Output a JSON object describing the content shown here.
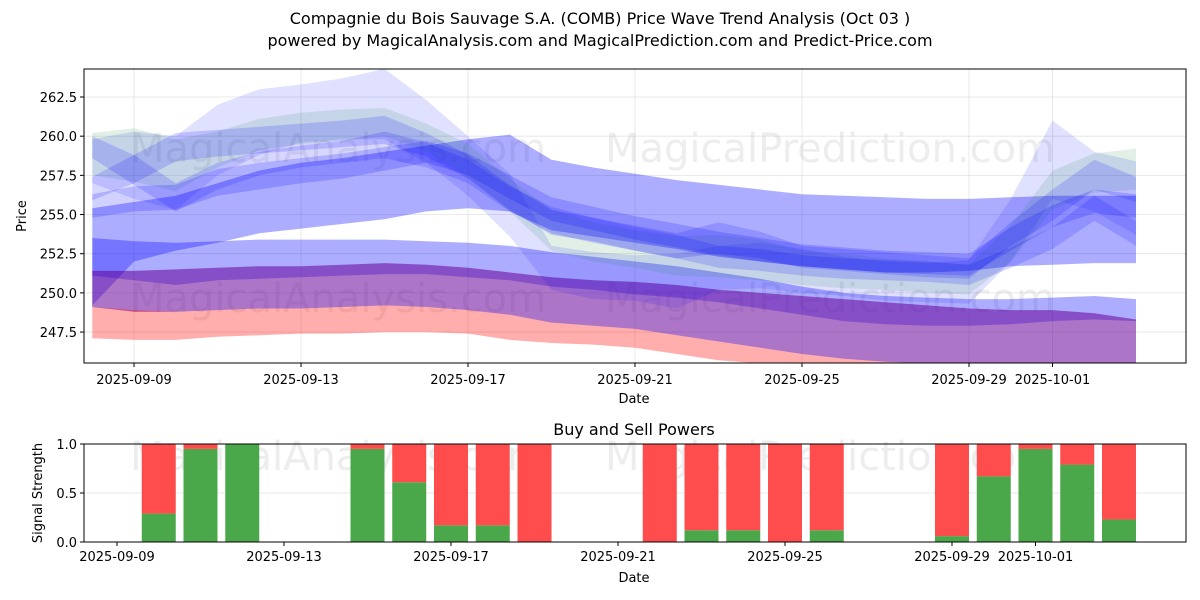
{
  "header": {
    "title": "Compagnie du Bois Sauvage S.A. (COMB) Price Wave Trend Analysis (Oct 03 )",
    "subtitle": "powered by MagicalAnalysis.com and MagicalPrediction.com and Predict-Price.com"
  },
  "watermarks": [
    "MagicalAnalysis.com",
    "MagicalPrediction.com"
  ],
  "colors": {
    "blue_band": "#0000ff",
    "green_band": "#2e8b57",
    "red_band": "#ff0000",
    "buy": "#4aa74a",
    "sell": "#ff4c4c"
  },
  "chart_data": [
    {
      "type": "area",
      "title": "",
      "xlabel": "Date",
      "ylabel": "Price",
      "x_ticks": [
        "2025-09-09",
        "2025-09-13",
        "2025-09-17",
        "2025-09-21",
        "2025-09-25",
        "2025-09-29",
        "2025-10-01"
      ],
      "y_ticks": [
        "247.5",
        "250.0",
        "252.5",
        "255.0",
        "257.5",
        "260.0",
        "262.5"
      ],
      "xlim": [
        "2025-09-07.8",
        "2025-10-04.2"
      ],
      "ylim": [
        245.5,
        264.3
      ],
      "grid": true,
      "x": [
        "2025-09-08",
        "2025-09-09",
        "2025-09-10",
        "2025-09-11",
        "2025-09-12",
        "2025-09-13",
        "2025-09-14",
        "2025-09-15",
        "2025-09-16",
        "2025-09-17",
        "2025-09-18",
        "2025-09-19",
        "2025-09-20",
        "2025-09-21",
        "2025-09-22",
        "2025-09-23",
        "2025-09-24",
        "2025-09-25",
        "2025-09-26",
        "2025-09-27",
        "2025-09-28",
        "2025-09-29",
        "2025-09-30",
        "2025-10-01",
        "2025-10-02",
        "2025-10-03"
      ],
      "series": [
        {
          "name": "wide-blue-upper",
          "color": "blue",
          "opacity": 0.32,
          "upper": [
            255.4,
            255.8,
            256.2,
            257.0,
            257.8,
            258.3,
            258.6,
            259.0,
            259.4,
            259.8,
            260.1,
            258.5,
            258.0,
            257.6,
            257.2,
            256.9,
            256.6,
            256.3,
            256.2,
            256.1,
            256.0,
            256.0,
            256.1,
            256.2,
            256.2,
            256.2
          ],
          "lower": [
            249.2,
            252.0,
            252.7,
            253.2,
            253.8,
            254.1,
            254.4,
            254.7,
            255.2,
            255.4,
            255.2,
            254.0,
            253.6,
            253.2,
            252.8,
            252.3,
            252.0,
            251.7,
            251.5,
            251.3,
            251.3,
            251.4,
            251.7,
            251.8,
            251.9,
            251.9
          ]
        },
        {
          "name": "blue-middle-band",
          "color": "blue",
          "opacity": 0.32,
          "upper": [
            253.5,
            253.3,
            253.2,
            253.3,
            253.4,
            253.4,
            253.4,
            253.4,
            253.3,
            253.2,
            253.0,
            252.6,
            252.3,
            252.0,
            251.7,
            251.3,
            250.9,
            250.4,
            250.0,
            249.8,
            249.7,
            249.6,
            249.6,
            249.7,
            249.8,
            249.6
          ],
          "lower": [
            251.1,
            250.8,
            250.5,
            250.8,
            250.9,
            251.0,
            251.1,
            251.2,
            251.2,
            251.0,
            250.8,
            250.4,
            250.2,
            249.9,
            249.7,
            249.4,
            249.0,
            248.6,
            248.2,
            248.0,
            247.9,
            247.9,
            248.0,
            248.2,
            248.3,
            248.2
          ]
        },
        {
          "name": "purple-band",
          "color": "red+blue",
          "opacity": 0.32,
          "upper": [
            251.4,
            251.4,
            251.5,
            251.6,
            251.7,
            251.7,
            251.8,
            251.9,
            251.8,
            251.6,
            251.3,
            251.0,
            250.8,
            250.7,
            250.5,
            250.2,
            250.0,
            249.8,
            249.6,
            249.4,
            249.2,
            249.0,
            248.9,
            248.9,
            248.7,
            248.3
          ],
          "lower": [
            249.1,
            248.8,
            248.8,
            248.9,
            249.0,
            249.0,
            249.1,
            249.2,
            249.1,
            248.9,
            248.6,
            248.1,
            247.9,
            247.7,
            247.3,
            246.9,
            246.5,
            246.1,
            245.8,
            245.6,
            245.5,
            245.5,
            245.5,
            245.5,
            245.5,
            245.5
          ]
        },
        {
          "name": "red-lower-band",
          "color": "red",
          "opacity": 0.32,
          "upper": [
            249.1,
            248.9,
            248.8,
            248.9,
            249.0,
            249.0,
            249.1,
            249.2,
            249.1,
            248.9,
            248.6,
            248.1,
            247.9,
            247.7,
            247.3,
            246.9,
            246.5,
            246.1,
            245.8,
            245.6,
            245.5,
            245.5,
            245.5,
            245.5,
            245.5,
            245.5
          ],
          "lower": [
            247.1,
            247.0,
            247.0,
            247.2,
            247.3,
            247.4,
            247.4,
            247.5,
            247.5,
            247.4,
            247.0,
            246.8,
            246.7,
            246.5,
            246.1,
            245.7,
            245.5,
            245.5,
            245.5,
            245.5,
            245.5,
            245.5,
            245.5,
            245.5,
            245.5,
            245.5
          ]
        },
        {
          "name": "wave-light-blue-1",
          "color": "blue",
          "opacity": 0.12,
          "upper": [
            259.8,
            260.3,
            260.0,
            262.0,
            263.0,
            263.3,
            263.7,
            264.3,
            262.3,
            260.0,
            257.6,
            253.0,
            252.6,
            252.4,
            252.5,
            253.0,
            253.2,
            252.8,
            252.3,
            252.0,
            251.9,
            252.1,
            256.0,
            261.0,
            259.0,
            258.4
          ],
          "lower": [
            257.0,
            256.0,
            255.3,
            257.5,
            258.8,
            259.6,
            259.8,
            259.8,
            258.3,
            256.2,
            253.6,
            250.2,
            249.6,
            249.5,
            249.0,
            250.2,
            250.3,
            250.0,
            249.8,
            249.5,
            249.4,
            249.3,
            252.0,
            256.0,
            255.2,
            253.7
          ]
        },
        {
          "name": "wave-green-1",
          "color": "green",
          "opacity": 0.14,
          "upper": [
            260.2,
            260.5,
            259.8,
            260.3,
            261.1,
            261.5,
            261.7,
            261.8,
            260.8,
            259.5,
            257.3,
            255.3,
            254.5,
            254.0,
            253.6,
            253.7,
            253.4,
            252.7,
            252.5,
            252.2,
            252.0,
            251.8,
            254.3,
            257.8,
            258.9,
            259.2
          ],
          "lower": [
            257.5,
            257.1,
            256.5,
            258.0,
            259.1,
            259.5,
            259.7,
            260.0,
            259.0,
            257.4,
            255.2,
            252.7,
            252.0,
            251.6,
            251.1,
            251.0,
            250.8,
            250.5,
            250.3,
            250.2,
            250.0,
            249.9,
            252.0,
            255.3,
            256.4,
            256.6
          ]
        },
        {
          "name": "wave-blue-2",
          "color": "blue",
          "opacity": 0.16,
          "upper": [
            260.0,
            258.8,
            257.0,
            258.3,
            259.0,
            259.4,
            259.7,
            260.3,
            259.6,
            258.5,
            256.8,
            255.5,
            254.8,
            254.3,
            253.8,
            254.5,
            253.9,
            253.0,
            252.8,
            252.6,
            252.4,
            252.2,
            254.5,
            256.6,
            258.5,
            257.4
          ],
          "lower": [
            258.6,
            256.9,
            255.2,
            256.6,
            257.5,
            258.0,
            258.3,
            258.6,
            258.0,
            257.0,
            255.2,
            253.8,
            253.2,
            252.7,
            252.2,
            252.5,
            252.2,
            251.6,
            251.4,
            251.2,
            251.0,
            250.9,
            253.0,
            254.6,
            256.6,
            255.8
          ]
        },
        {
          "name": "wave-blue-3",
          "color": "blue",
          "opacity": 0.16,
          "upper": [
            257.4,
            258.8,
            260.2,
            260.4,
            260.6,
            260.8,
            261.0,
            261.3,
            260.2,
            258.8,
            256.9,
            255.3,
            254.8,
            254.2,
            253.7,
            253.0,
            252.8,
            252.4,
            252.2,
            252.1,
            252.0,
            251.8,
            252.9,
            254.2,
            256.2,
            254.6
          ],
          "lower": [
            255.9,
            257.0,
            258.4,
            258.7,
            258.9,
            259.1,
            259.3,
            259.5,
            258.7,
            257.3,
            255.3,
            253.7,
            253.3,
            252.7,
            252.2,
            251.6,
            251.4,
            251.1,
            250.9,
            250.8,
            250.7,
            250.5,
            251.6,
            252.8,
            254.6,
            253.0
          ]
        },
        {
          "name": "wave-blue-4",
          "color": "blue",
          "opacity": 0.18,
          "upper": [
            256.3,
            256.8,
            256.9,
            257.9,
            258.3,
            258.6,
            258.9,
            259.3,
            259.7,
            258.9,
            257.5,
            256.1,
            255.5,
            254.9,
            254.4,
            253.9,
            253.5,
            253.1,
            252.9,
            252.7,
            252.6,
            252.5,
            254.2,
            255.6,
            256.6,
            256.3
          ],
          "lower": [
            254.8,
            255.2,
            255.3,
            256.2,
            256.6,
            257.0,
            257.3,
            257.8,
            258.3,
            257.5,
            256.0,
            254.6,
            254.0,
            253.4,
            252.9,
            252.4,
            252.0,
            251.7,
            251.5,
            251.3,
            251.2,
            251.1,
            252.7,
            254.2,
            255.1,
            254.8
          ]
        }
      ]
    },
    {
      "type": "bar",
      "title": "Buy and Sell Powers",
      "xlabel": "Date",
      "ylabel": "Signal Strength",
      "ylim": [
        0,
        1.0
      ],
      "y_ticks": [
        "0.0",
        "0.5",
        "1.0"
      ],
      "x_ticks": [
        "2025-09-09",
        "2025-09-13",
        "2025-09-17",
        "2025-09-21",
        "2025-09-25",
        "2025-09-29",
        "2025-10-01"
      ],
      "grid": true,
      "stacked": true,
      "categories": [
        "2025-09-10",
        "2025-09-11",
        "2025-09-12",
        "2025-09-15",
        "2025-09-16",
        "2025-09-17",
        "2025-09-18",
        "2025-09-19",
        "2025-09-22",
        "2025-09-23",
        "2025-09-24",
        "2025-09-25",
        "2025-09-26",
        "2025-09-29",
        "2025-09-30",
        "2025-10-01",
        "2025-10-02",
        "2025-10-03"
      ],
      "series": [
        {
          "name": "Buy",
          "values": [
            0.29,
            0.95,
            1.0,
            0.95,
            0.61,
            0.17,
            0.17,
            0.0,
            0.0,
            0.12,
            0.12,
            0.0,
            0.12,
            0.06,
            0.67,
            0.95,
            0.79,
            0.23
          ]
        },
        {
          "name": "Sell",
          "values": [
            0.71,
            0.05,
            0.0,
            0.05,
            0.39,
            0.83,
            0.83,
            1.0,
            1.0,
            0.88,
            0.88,
            1.0,
            0.88,
            0.94,
            0.33,
            0.05,
            0.21,
            0.77
          ]
        }
      ]
    }
  ]
}
